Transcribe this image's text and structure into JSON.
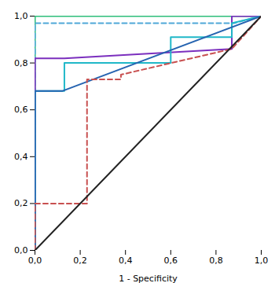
{
  "chart_data": {
    "type": "line",
    "xlabel": "1 - Specificity",
    "xlim": [
      0.0,
      1.0
    ],
    "ylim": [
      0.0,
      1.0
    ],
    "xticks": [
      {
        "value": 0.0,
        "label": "0,0"
      },
      {
        "value": 0.2,
        "label": "0,2"
      },
      {
        "value": 0.4,
        "label": "0,4"
      },
      {
        "value": 0.6,
        "label": "0,6"
      },
      {
        "value": 0.8,
        "label": "0,8"
      },
      {
        "value": 1.0,
        "label": "1,0"
      }
    ],
    "yticks": [
      {
        "value": 0.0,
        "label": "0,0"
      },
      {
        "value": 0.2,
        "label": "0,2"
      },
      {
        "value": 0.4,
        "label": "0,4"
      },
      {
        "value": 0.6,
        "label": "0,6"
      },
      {
        "value": 0.8,
        "label": "0,8"
      },
      {
        "value": 1.0,
        "label": "1,0"
      }
    ],
    "grid": false,
    "series": [
      {
        "color": "#2ebd7a",
        "line_style": "solid",
        "x": [
          0.0,
          0.0,
          0.12,
          0.12,
          1.0
        ],
        "values": [
          0.0,
          1.0,
          1.0,
          1.0,
          1.0
        ]
      },
      {
        "color": "#4fa8d8",
        "line_style": "dashed",
        "x": [
          0.0,
          0.0,
          0.88,
          1.0
        ],
        "values": [
          0.0,
          0.97,
          0.97,
          1.0
        ]
      },
      {
        "color": "#7b2fbe",
        "line_style": "solid",
        "x": [
          0.0,
          0.0,
          0.13,
          0.13,
          0.87,
          0.87,
          1.0
        ],
        "values": [
          0.0,
          0.82,
          0.82,
          0.82,
          0.86,
          1.0,
          1.0
        ]
      },
      {
        "color": "#20b8c8",
        "line_style": "solid",
        "x": [
          0.0,
          0.0,
          0.13,
          0.13,
          0.25,
          0.25,
          0.6,
          0.6,
          0.87,
          0.87,
          1.0
        ],
        "values": [
          0.0,
          0.68,
          0.68,
          0.8,
          0.8,
          0.8,
          0.8,
          0.91,
          0.91,
          0.97,
          1.0
        ]
      },
      {
        "color": "#2563b0",
        "line_style": "solid",
        "x": [
          0.0,
          0.0,
          0.0,
          0.12,
          0.12,
          1.0
        ],
        "values": [
          0.0,
          0.35,
          0.68,
          0.68,
          0.68,
          1.0
        ]
      },
      {
        "color": "#c85050",
        "line_style": "dashed",
        "x": [
          0.0,
          0.0,
          0.23,
          0.23,
          0.38,
          0.38,
          0.87,
          1.0
        ],
        "values": [
          0.0,
          0.2,
          0.2,
          0.73,
          0.73,
          0.75,
          0.86,
          1.0
        ]
      },
      {
        "color": "#222222",
        "line_style": "solid",
        "x": [
          0,
          1
        ],
        "values": [
          0,
          1
        ]
      }
    ]
  }
}
